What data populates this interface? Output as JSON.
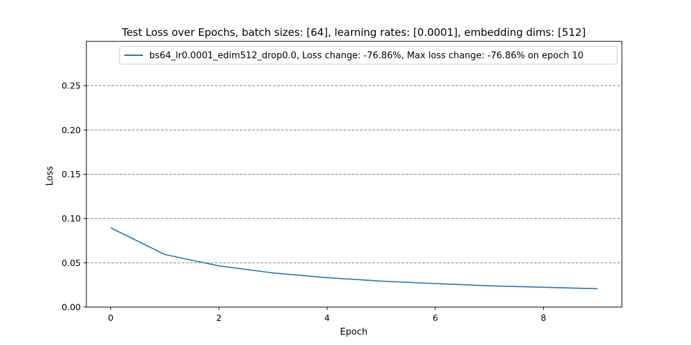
{
  "chart_data": {
    "type": "line",
    "title": "Test Loss over Epochs, batch sizes: [64], learning rates: [0.0001], embedding dims: [512]",
    "xlabel": "Epoch",
    "ylabel": "Loss",
    "xlim": [
      -0.45,
      9.45
    ],
    "ylim": [
      0.0,
      0.3
    ],
    "xticks": [
      0,
      2,
      4,
      6,
      8
    ],
    "xtick_labels": [
      "0",
      "2",
      "4",
      "6",
      "8"
    ],
    "yticks": [
      0.0,
      0.05,
      0.1,
      0.15,
      0.2,
      0.25
    ],
    "ytick_labels": [
      "0.00",
      "0.05",
      "0.10",
      "0.15",
      "0.20",
      "0.25"
    ],
    "grid": "horizontal dashed",
    "legend_position": "top-right",
    "series": [
      {
        "name": "bs64_lr0.0001_edim512_drop0.0, Loss change: -76.86%, Max loss change: -76.86% on epoch 10",
        "color": "#1f77b4",
        "x": [
          0,
          1,
          2,
          3,
          4,
          5,
          6,
          7,
          8,
          9
        ],
        "y": [
          0.0895,
          0.0593,
          0.0465,
          0.0385,
          0.0332,
          0.0293,
          0.0265,
          0.024,
          0.0224,
          0.0207
        ]
      }
    ]
  }
}
